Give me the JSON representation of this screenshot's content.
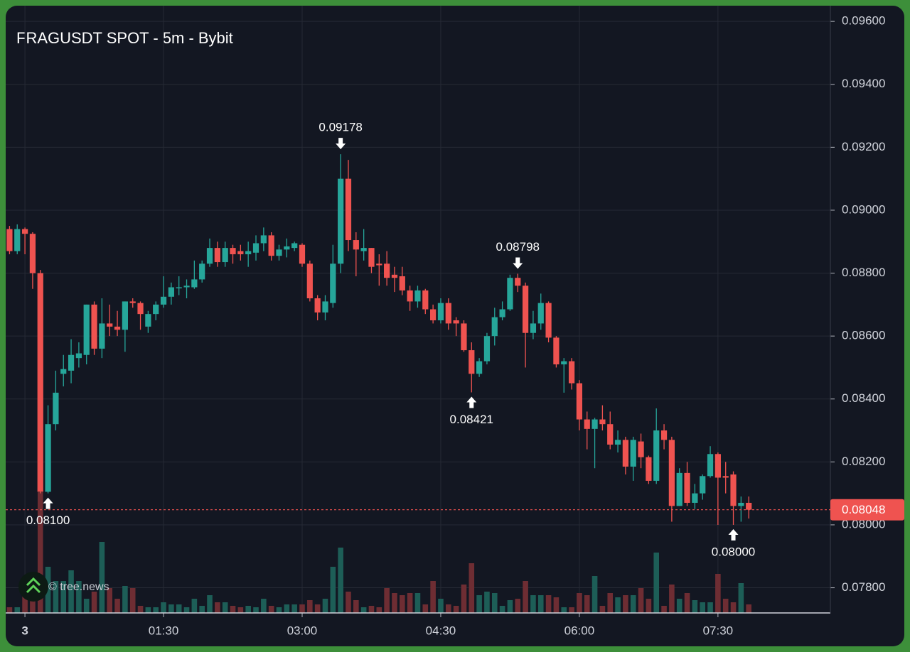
{
  "chart_data": {
    "type": "candlestick",
    "title": "FRAGUSDT SPOT - 5m - Bybit",
    "watermark": "© tree.news",
    "x": [
      -10,
      -5,
      0,
      5,
      10,
      15,
      20,
      25,
      30,
      35,
      40,
      45,
      50,
      55,
      60,
      65,
      70,
      75,
      80,
      85,
      90,
      95,
      100,
      105,
      110,
      115,
      120,
      125,
      130,
      135,
      140,
      145,
      150,
      155,
      160,
      165,
      170,
      175,
      180,
      185,
      190,
      195,
      200,
      205,
      210,
      215,
      220,
      225,
      230,
      235,
      240,
      245,
      250,
      255,
      260,
      265,
      270,
      275,
      280,
      285,
      290,
      295,
      300,
      305,
      310,
      315,
      320,
      325,
      330,
      335,
      340,
      345,
      350,
      355,
      360,
      365,
      370,
      375,
      380,
      385,
      390,
      395,
      400,
      405,
      410,
      415,
      420,
      425,
      430,
      435,
      440,
      445,
      450,
      455,
      460,
      465,
      470
    ],
    "open": [
      0.0894,
      0.0887,
      0.0894,
      0.08925,
      0.088,
      0.08105,
      0.0832,
      0.0848,
      0.0849,
      0.0853,
      0.0854,
      0.087,
      0.0856,
      0.0864,
      0.0863,
      0.0862,
      0.0871,
      0.08705,
      0.0863,
      0.0867,
      0.087,
      0.08725,
      0.08755,
      0.08755,
      0.08755,
      0.0878,
      0.0883,
      0.0888,
      0.08835,
      0.0888,
      0.0887,
      0.0886,
      0.08865,
      0.08895,
      0.0892,
      0.08855,
      0.08875,
      0.0888,
      0.0889,
      0.0883,
      0.0872,
      0.08675,
      0.08705,
      0.0883,
      0.091,
      0.08905,
      0.0887,
      0.0888,
      0.0883,
      0.0883,
      0.08795,
      0.0879,
      0.08745,
      0.0871,
      0.08745,
      0.08685,
      0.0865,
      0.08705,
      0.0865,
      0.0864,
      0.08555,
      0.0848,
      0.0852,
      0.086,
      0.0866,
      0.08685,
      0.08785,
      0.0876,
      0.0861,
      0.0864,
      0.08705,
      0.08595,
      0.0851,
      0.0852,
      0.0845,
      0.08335,
      0.08305,
      0.08335,
      0.0832,
      0.08255,
      0.0827,
      0.08185,
      0.08265,
      0.08215,
      0.0814,
      0.083,
      0.0827,
      0.0806,
      0.08165,
      0.0807,
      0.081,
      0.08155,
      0.08225,
      0.08155,
      0.0816,
      0.0806,
      0.0807
    ],
    "high": [
      0.0895,
      0.08955,
      0.08945,
      0.0893,
      0.0881,
      0.0838,
      0.0849,
      0.0854,
      0.0859,
      0.0858,
      0.087,
      0.0871,
      0.0872,
      0.087,
      0.0868,
      0.0871,
      0.0872,
      0.0871,
      0.0868,
      0.0871,
      0.0879,
      0.0877,
      0.0879,
      0.0878,
      0.0884,
      0.0884,
      0.0891,
      0.089,
      0.089,
      0.0889,
      0.0889,
      0.089,
      0.0892,
      0.08945,
      0.0893,
      0.0889,
      0.0891,
      0.089,
      0.08895,
      0.0884,
      0.0873,
      0.0873,
      0.0889,
      0.09178,
      0.0916,
      0.0893,
      0.0894,
      0.0888,
      0.0886,
      0.0887,
      0.0882,
      0.0882,
      0.0876,
      0.0876,
      0.0875,
      0.087,
      0.0872,
      0.0872,
      0.0866,
      0.0865,
      0.0858,
      0.0853,
      0.0861,
      0.0869,
      0.0871,
      0.08795,
      0.08798,
      0.0877,
      0.0868,
      0.08735,
      0.0871,
      0.086,
      0.0853,
      0.0853,
      0.0846,
      0.0836,
      0.0834,
      0.0838,
      0.0836,
      0.083,
      0.0828,
      0.0828,
      0.0829,
      0.0822,
      0.0837,
      0.0832,
      0.0828,
      0.0818,
      0.082,
      0.0813,
      0.0816,
      0.0825,
      0.0823,
      0.082,
      0.0817,
      0.0809,
      0.0809
    ],
    "low": [
      0.0886,
      0.0886,
      0.0886,
      0.0875,
      0.081,
      0.081,
      0.083,
      0.0844,
      0.0845,
      0.085,
      0.0851,
      0.0854,
      0.0853,
      0.086,
      0.086,
      0.0855,
      0.0869,
      0.0862,
      0.0861,
      0.0865,
      0.0869,
      0.087,
      0.0873,
      0.0872,
      0.0875,
      0.0877,
      0.0882,
      0.0882,
      0.0882,
      0.0883,
      0.0884,
      0.0882,
      0.0884,
      0.0887,
      0.0884,
      0.0884,
      0.0885,
      0.0887,
      0.0882,
      0.0871,
      0.0865,
      0.0865,
      0.0869,
      0.088,
      0.0887,
      0.0879,
      0.0884,
      0.088,
      0.0876,
      0.0876,
      0.0874,
      0.0873,
      0.0868,
      0.0869,
      0.0867,
      0.0864,
      0.0864,
      0.0862,
      0.086,
      0.0855,
      0.08421,
      0.0847,
      0.0851,
      0.0857,
      0.0865,
      0.0868,
      0.0874,
      0.085,
      0.0859,
      0.0862,
      0.0858,
      0.085,
      0.0842,
      0.0843,
      0.083,
      0.0824,
      0.0818,
      0.083,
      0.0824,
      0.0823,
      0.0816,
      0.0814,
      0.0818,
      0.0813,
      0.0813,
      0.0824,
      0.0801,
      0.0806,
      0.0806,
      0.0805,
      0.0808,
      0.0815,
      0.08,
      0.081,
      0.08,
      0.0801,
      0.0802
    ],
    "close": [
      0.0887,
      0.0894,
      0.08925,
      0.088,
      0.08105,
      0.0832,
      0.0842,
      0.08495,
      0.0854,
      0.08545,
      0.087,
      0.0856,
      0.0864,
      0.0863,
      0.0862,
      0.0871,
      0.08705,
      0.0867,
      0.0867,
      0.087,
      0.08725,
      0.08755,
      0.08755,
      0.0876,
      0.0878,
      0.0883,
      0.0888,
      0.08835,
      0.0888,
      0.0886,
      0.0886,
      0.0887,
      0.08895,
      0.0892,
      0.08855,
      0.08875,
      0.08885,
      0.08895,
      0.0883,
      0.0872,
      0.08675,
      0.0871,
      0.0883,
      0.091,
      0.08905,
      0.08875,
      0.0888,
      0.0882,
      0.08825,
      0.08785,
      0.08785,
      0.08745,
      0.0871,
      0.08745,
      0.08685,
      0.0865,
      0.08705,
      0.0864,
      0.0864,
      0.08555,
      0.0848,
      0.0852,
      0.086,
      0.0866,
      0.08685,
      0.08785,
      0.0876,
      0.0861,
      0.0864,
      0.08705,
      0.08595,
      0.0851,
      0.0852,
      0.0845,
      0.08335,
      0.08305,
      0.08335,
      0.0832,
      0.08255,
      0.0827,
      0.08185,
      0.0827,
      0.08215,
      0.0814,
      0.083,
      0.0827,
      0.0806,
      0.08165,
      0.0807,
      0.081,
      0.08155,
      0.08225,
      0.0815,
      0.0815,
      0.0806,
      0.0807,
      0.08048
    ],
    "volume": [
      8,
      8,
      30,
      20,
      170,
      65,
      45,
      45,
      60,
      45,
      20,
      30,
      100,
      35,
      20,
      38,
      35,
      10,
      8,
      8,
      15,
      12,
      12,
      8,
      20,
      10,
      25,
      15,
      15,
      10,
      8,
      10,
      8,
      20,
      10,
      8,
      12,
      12,
      12,
      18,
      12,
      20,
      65,
      92,
      30,
      18,
      8,
      10,
      8,
      35,
      28,
      25,
      28,
      28,
      12,
      45,
      20,
      12,
      10,
      40,
      70,
      25,
      30,
      28,
      10,
      18,
      20,
      45,
      25,
      25,
      25,
      22,
      8,
      8,
      28,
      25,
      52,
      10,
      28,
      22,
      25,
      25,
      35,
      20,
      85,
      10,
      40,
      20,
      28,
      18,
      15,
      15,
      55,
      20,
      15,
      42,
      12
    ],
    "up_color": "#26a69a",
    "down_color": "#ef5350",
    "xlim": [
      -12.5,
      523
    ],
    "xticks": [
      {
        "value": 0,
        "label": "3"
      },
      {
        "value": 90,
        "label": "01:30"
      },
      {
        "value": 180,
        "label": "03:00"
      },
      {
        "value": 270,
        "label": "04:30"
      },
      {
        "value": 360,
        "label": "06:00"
      },
      {
        "value": 450,
        "label": "07:30"
      }
    ],
    "ylim": [
      0.0772,
      0.0965
    ],
    "yticks": [
      {
        "value": 0.078,
        "label": "0.07800"
      },
      {
        "value": 0.08,
        "label": "0.08000"
      },
      {
        "value": 0.082,
        "label": "0.08200"
      },
      {
        "value": 0.084,
        "label": "0.08400"
      },
      {
        "value": 0.086,
        "label": "0.08600"
      },
      {
        "value": 0.088,
        "label": "0.08800"
      },
      {
        "value": 0.09,
        "label": "0.09000"
      },
      {
        "value": 0.092,
        "label": "0.09200"
      },
      {
        "value": 0.094,
        "label": "0.09400"
      },
      {
        "value": 0.096,
        "label": "0.09600"
      }
    ],
    "grid": true,
    "last_price": {
      "value": 0.08048,
      "label": "0.08048"
    },
    "annotations": [
      {
        "x": 205,
        "value": 0.09178,
        "label": "0.09178",
        "position": "above"
      },
      {
        "x": 320,
        "value": 0.08798,
        "label": "0.08798",
        "position": "above"
      },
      {
        "x": 290,
        "value": 0.08421,
        "label": "0.08421",
        "position": "below"
      },
      {
        "x": 15,
        "value": 0.081,
        "label": "0.08100",
        "position": "below"
      },
      {
        "x": 460,
        "value": 0.08,
        "label": "0.08000",
        "position": "below"
      }
    ]
  }
}
